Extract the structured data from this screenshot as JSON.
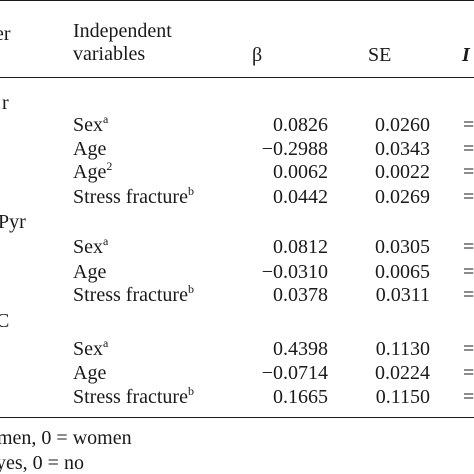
{
  "table": {
    "header": {
      "col0": "er",
      "col1_line1": "Independent",
      "col1_line2": "variables",
      "beta": "β",
      "se": "SE",
      "last": "I"
    },
    "groups": [
      {
        "label": "r",
        "rows": [
          {
            "var": "Sex",
            "sup": "a",
            "beta": "0.0826",
            "se": "0.0260",
            "mark": "="
          },
          {
            "var": "Age",
            "sup": "",
            "beta": "−0.2988",
            "se": "0.0343",
            "mark": "="
          },
          {
            "var": "Age",
            "sup": "2",
            "beta": "0.0062",
            "se": "0.0022",
            "mark": "="
          },
          {
            "var": "Stress fracture",
            "sup": "b",
            "beta": "0.0442",
            "se": "0.0269",
            "mark": "="
          }
        ]
      },
      {
        "label": "Pyr",
        "rows": [
          {
            "var": "Sex",
            "sup": "a",
            "beta": "0.0812",
            "se": "0.0305",
            "mark": "="
          },
          {
            "var": "Age",
            "sup": "",
            "beta": "−0.0310",
            "se": "0.0065",
            "mark": "="
          },
          {
            "var": "Stress fracture",
            "sup": "b",
            "beta": "0.0378",
            "se": "0.0311",
            "mark": "="
          }
        ]
      },
      {
        "label": "C",
        "rows": [
          {
            "var": "Sex",
            "sup": "a",
            "beta": "0.4398",
            "se": "0.1130",
            "mark": "="
          },
          {
            "var": "Age",
            "sup": "",
            "beta": "−0.0714",
            "se": "0.0224",
            "mark": "="
          },
          {
            "var": "Stress fracture",
            "sup": "b",
            "beta": "0.1665",
            "se": "0.1150",
            "mark": "="
          }
        ]
      }
    ],
    "footnotes": [
      "men, 0 = women",
      "yes, 0 = no"
    ]
  }
}
